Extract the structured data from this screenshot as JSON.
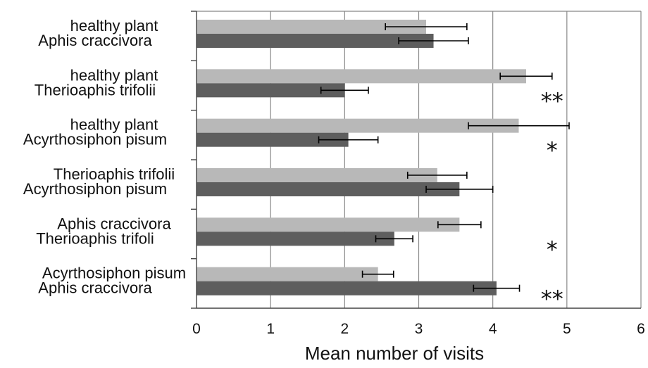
{
  "chart_data": {
    "type": "bar",
    "orientation": "horizontal",
    "xlabel": "Mean number of visits",
    "xlim": [
      0,
      6
    ],
    "xticks": [
      "0",
      "1",
      "2",
      "3",
      "4",
      "5",
      "6"
    ],
    "grid": "vertical",
    "legend": "none",
    "colors": {
      "first": "#b8b8b8",
      "second": "#5e5e5e",
      "axis": "#444444",
      "grid": "#888888"
    },
    "groups": [
      {
        "label_top": "healthy plant",
        "label_bottom": "Aphis craccivora",
        "values": [
          3.1,
          3.2
        ],
        "errors": [
          0.55,
          0.47
        ],
        "significance": ""
      },
      {
        "label_top": "healthy plant",
        "label_bottom": "Therioaphis trifolii",
        "values": [
          4.45,
          2.0
        ],
        "errors": [
          0.35,
          0.32
        ],
        "significance": "**"
      },
      {
        "label_top": "healthy plant",
        "label_bottom": "Acyrthosiphon pisum",
        "values": [
          4.35,
          2.05
        ],
        "errors": [
          0.68,
          0.4
        ],
        "significance": "*"
      },
      {
        "label_top": "Therioaphis trifolii",
        "label_bottom": "Acyrthosiphon pisum",
        "values": [
          3.25,
          3.55
        ],
        "errors": [
          0.4,
          0.45
        ],
        "significance": ""
      },
      {
        "label_top": "Aphis craccivora",
        "label_bottom": "Therioaphis trifoli",
        "values": [
          3.55,
          2.67
        ],
        "errors": [
          0.29,
          0.25
        ],
        "significance": "*"
      },
      {
        "label_top": "Acyrthosiphon pisum",
        "label_bottom": "Aphis craccivora",
        "values": [
          2.45,
          4.05
        ],
        "errors": [
          0.21,
          0.31
        ],
        "significance": "**"
      }
    ]
  }
}
